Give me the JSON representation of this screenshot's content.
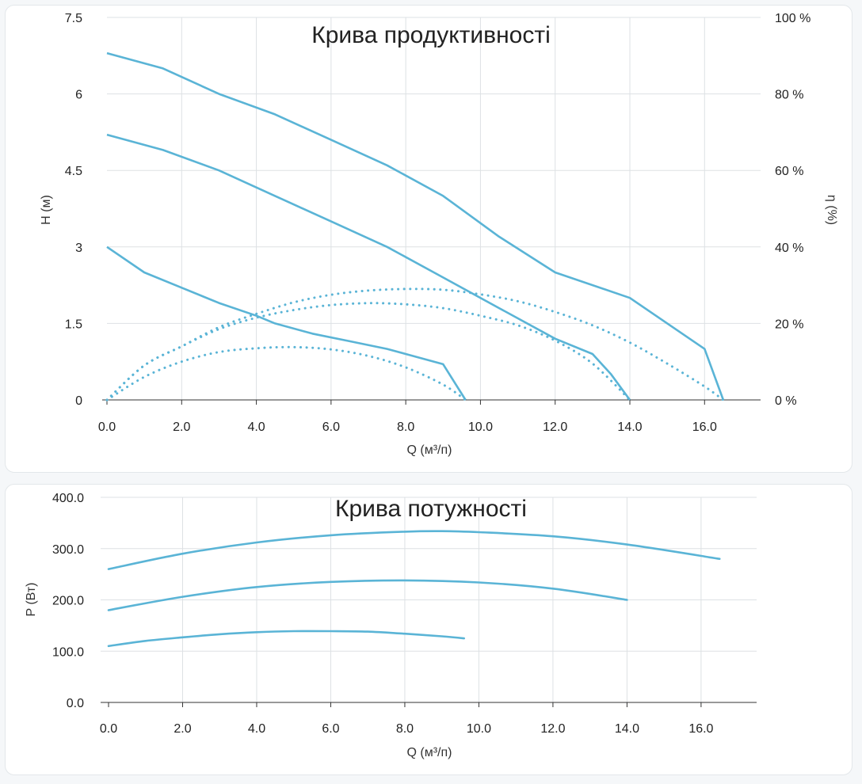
{
  "colors": {
    "curve": "#5ab4d6",
    "grid": "#dde1e4",
    "text": "#222222"
  },
  "chart_data": [
    {
      "type": "line",
      "title": "Крива продуктивності",
      "xlabel": "Q (м³/п)",
      "ylabel": "H (м)",
      "y2label": "η (%)",
      "xlim": [
        0,
        17.5
      ],
      "ylim": [
        0,
        7.5
      ],
      "y2lim": [
        0,
        100
      ],
      "grid": true,
      "xticks": [
        "0.0",
        "2.0",
        "4.0",
        "6.0",
        "8.0",
        "10.0",
        "12.0",
        "14.0",
        "16.0"
      ],
      "yticks": [
        "0",
        "1.5",
        "3",
        "4.5",
        "6",
        "7.5"
      ],
      "y2ticks": [
        "0 %",
        "20 %",
        "40 %",
        "60 %",
        "80 %",
        "100 %"
      ],
      "head_series": [
        {
          "x": [
            0,
            1,
            2,
            3,
            4,
            4.5,
            5.5,
            6.5,
            7.5,
            8,
            9,
            9.6
          ],
          "y": [
            3.0,
            2.5,
            2.2,
            1.9,
            1.65,
            1.5,
            1.3,
            1.15,
            1.0,
            0.9,
            0.7,
            0.0
          ]
        },
        {
          "x": [
            0,
            1.5,
            3,
            4.5,
            6,
            7.5,
            9,
            10.5,
            12,
            13,
            13.5,
            14
          ],
          "y": [
            5.2,
            4.9,
            4.5,
            4.0,
            3.5,
            3.0,
            2.4,
            1.8,
            1.2,
            0.9,
            0.5,
            0.0
          ]
        },
        {
          "x": [
            0,
            1.5,
            3,
            4.5,
            6,
            7.5,
            9,
            10.5,
            12,
            14,
            16,
            16.5
          ],
          "y": [
            6.8,
            6.5,
            6.0,
            5.6,
            5.1,
            4.6,
            4.0,
            3.2,
            2.5,
            2.0,
            1.0,
            0.0
          ]
        }
      ],
      "efficiency_series": [
        {
          "x": [
            0,
            1,
            2,
            3,
            4,
            5,
            6,
            7,
            8,
            9,
            9.6
          ],
          "y": [
            0,
            6,
            10,
            12.5,
            13.5,
            13.8,
            13.2,
            11.5,
            8.5,
            4,
            0
          ]
        },
        {
          "x": [
            0,
            1,
            2,
            3,
            4,
            5,
            6,
            7,
            8,
            9,
            10,
            11,
            12,
            13,
            14
          ],
          "y": [
            0,
            9,
            14,
            18.5,
            21.5,
            23.5,
            24.8,
            25.3,
            25,
            24,
            22,
            19.5,
            15.5,
            9.5,
            0
          ]
        },
        {
          "x": [
            0,
            1,
            2,
            3,
            4,
            5,
            6,
            7,
            8,
            9,
            10,
            11,
            12,
            13,
            14,
            15,
            16,
            16.5
          ],
          "y": [
            0,
            9,
            14,
            19,
            22.5,
            25.5,
            27.5,
            28.6,
            29,
            28.8,
            27.6,
            25.8,
            23,
            19.5,
            15,
            9.5,
            3.5,
            0
          ]
        }
      ]
    },
    {
      "type": "line",
      "title": "Крива потужності",
      "xlabel": "Q (м³/п)",
      "ylabel": "P (Вт)",
      "xlim": [
        0,
        17.5
      ],
      "ylim": [
        0,
        400
      ],
      "grid": true,
      "xticks": [
        "0.0",
        "2.0",
        "4.0",
        "6.0",
        "8.0",
        "10.0",
        "12.0",
        "14.0",
        "16.0"
      ],
      "yticks": [
        "0.0",
        "100.0",
        "200.0",
        "300.0",
        "400.0"
      ],
      "power_series": [
        {
          "x": [
            0,
            1,
            2,
            3,
            4,
            5,
            6,
            7,
            8,
            9,
            9.6
          ],
          "y": [
            110,
            120,
            127,
            133,
            137,
            139,
            139,
            138,
            134,
            129,
            125
          ]
        },
        {
          "x": [
            0,
            2,
            4,
            6,
            8,
            10,
            12,
            14
          ],
          "y": [
            180,
            206,
            225,
            235,
            238,
            234,
            222,
            200
          ]
        },
        {
          "x": [
            0,
            2,
            4,
            6,
            8,
            9,
            10,
            12,
            14,
            16.5
          ],
          "y": [
            260,
            290,
            312,
            326,
            333,
            334,
            332,
            324,
            308,
            280
          ]
        }
      ]
    }
  ]
}
